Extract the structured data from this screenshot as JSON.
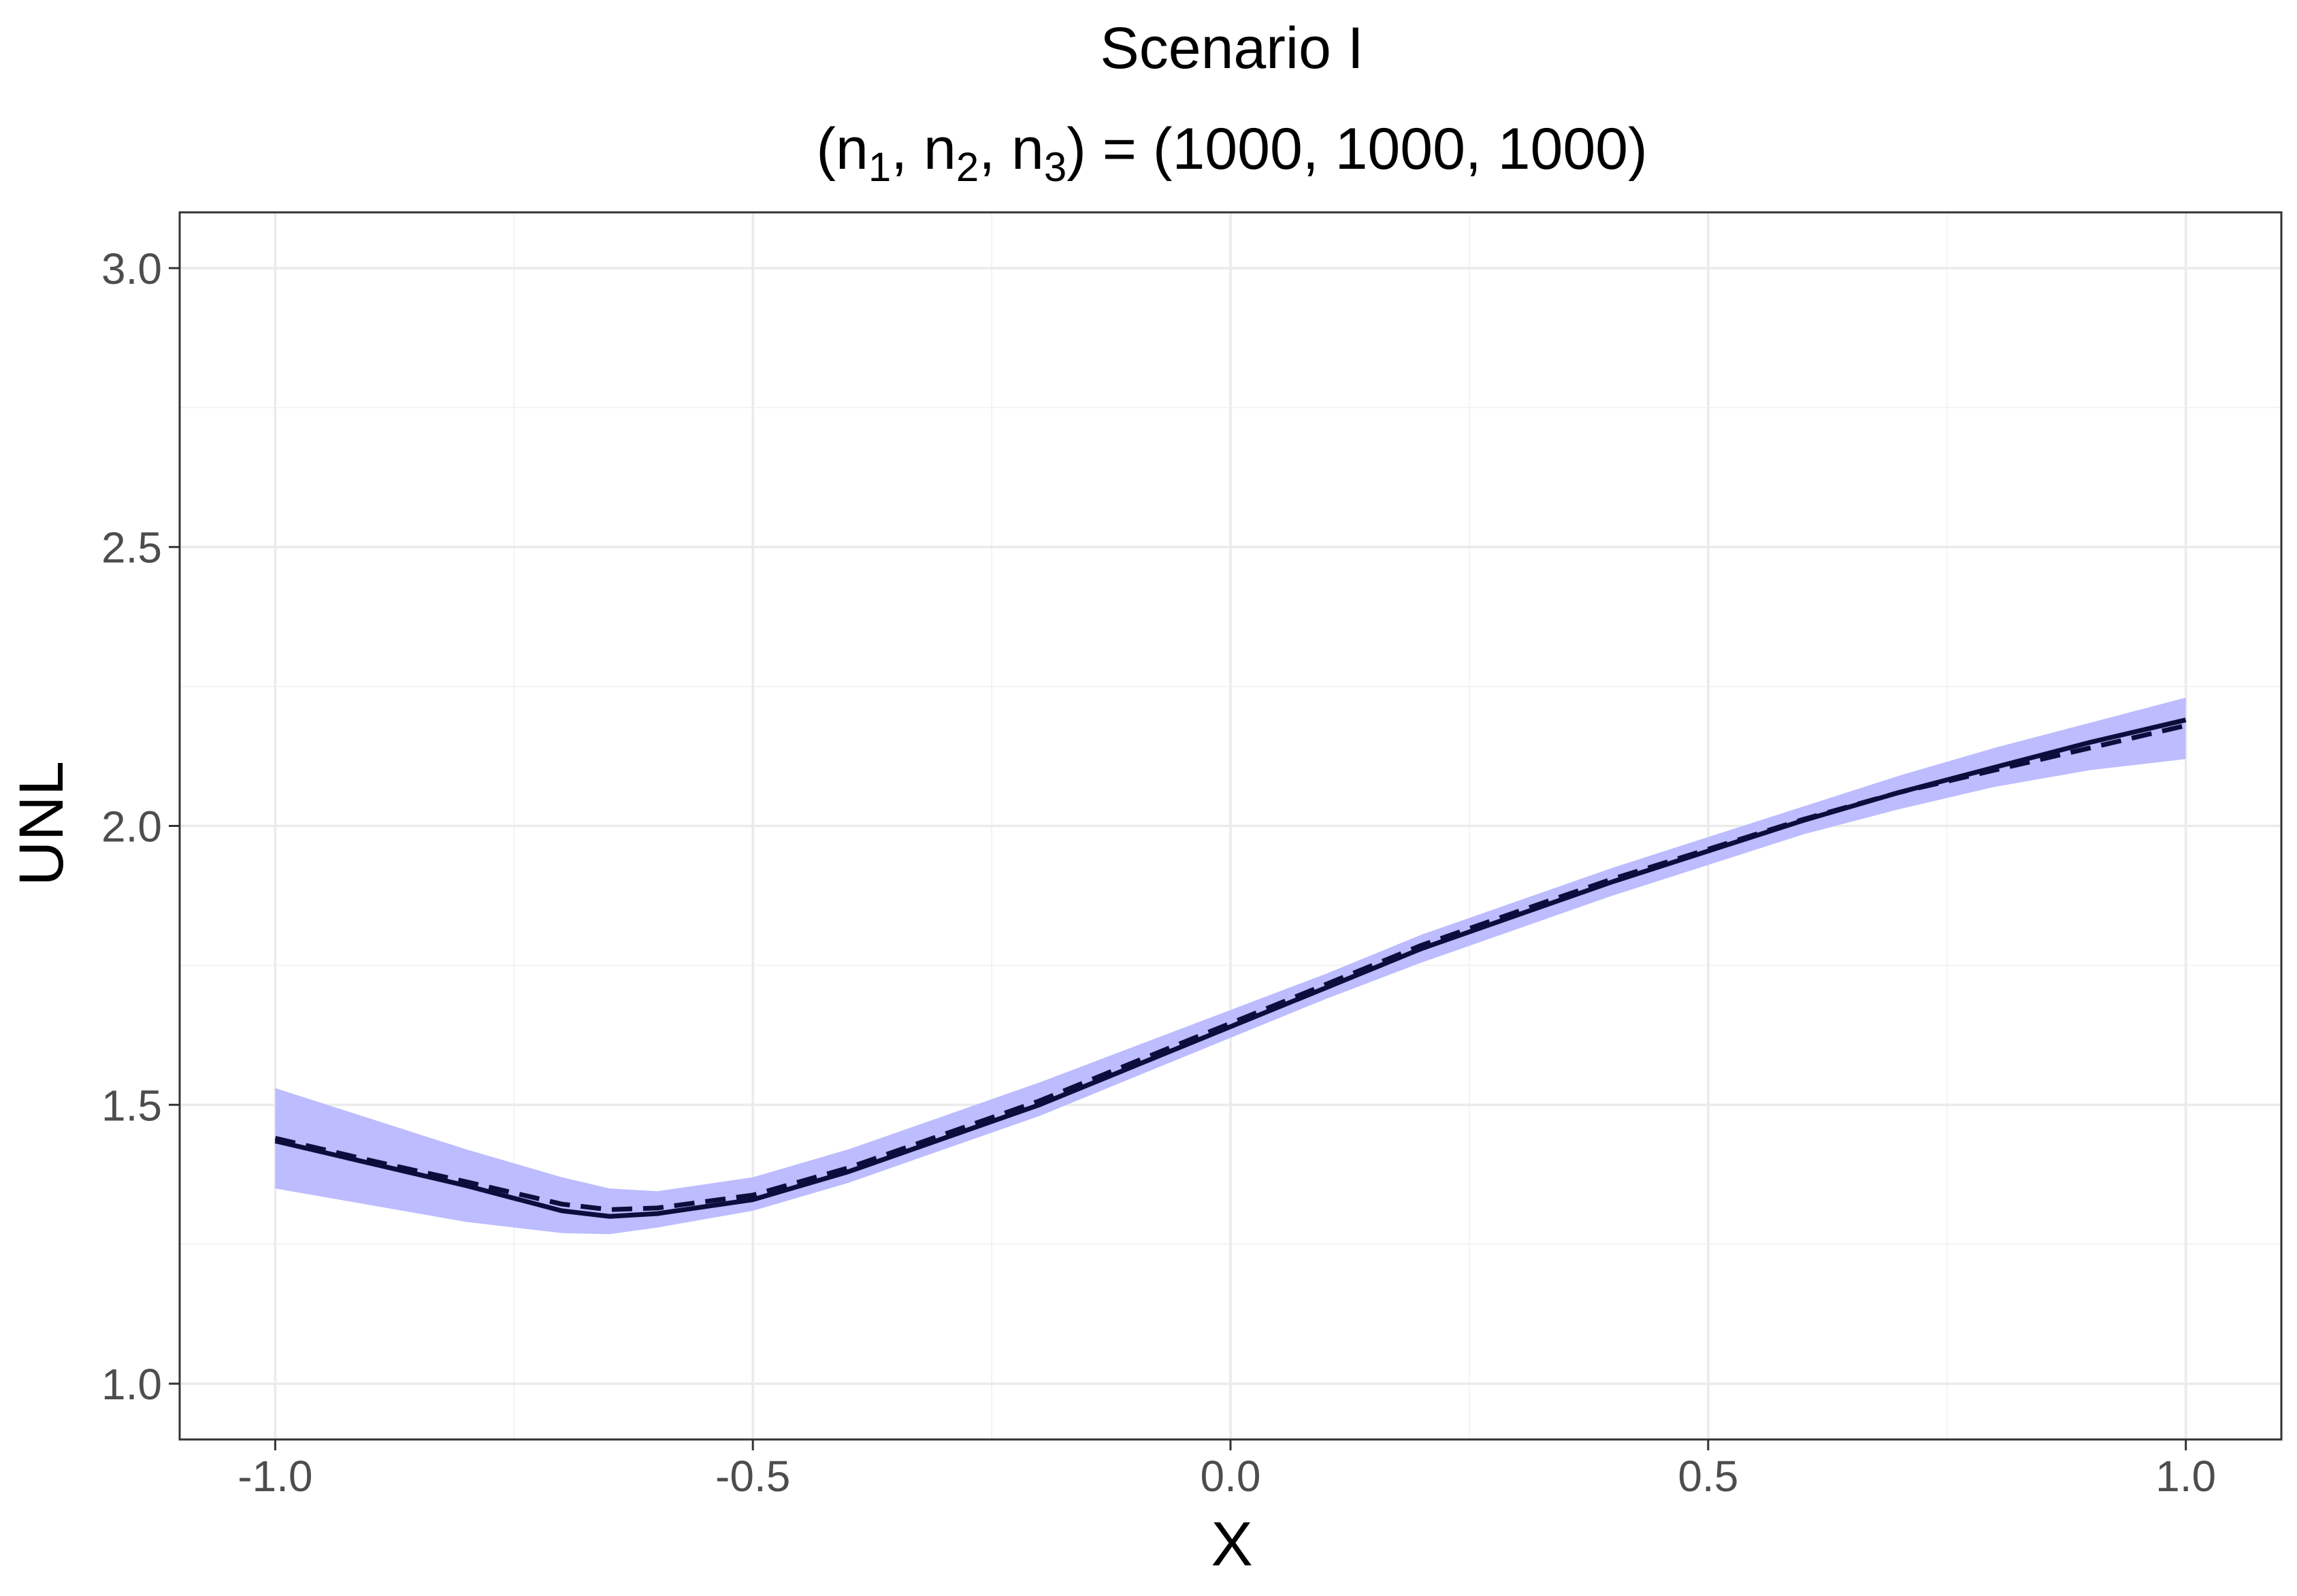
{
  "chart_data": {
    "type": "line",
    "title": "Scenario I",
    "subtitle_parts": {
      "open": "(n",
      "sub1": "1",
      "sep1": ", n",
      "sub2": "2",
      "sep2": ", n",
      "sub3": "3",
      "close": ") = (1000, 1000, 1000)"
    },
    "xlabel": "X",
    "ylabel": "UNL",
    "xlim": [
      -1.1,
      1.1
    ],
    "ylim": [
      0.9,
      3.1
    ],
    "x_ticks": [
      -1.0,
      -0.5,
      0.0,
      0.5,
      1.0
    ],
    "x_tick_labels": [
      "-1.0",
      "-0.5",
      "0.0",
      "0.5",
      "1.0"
    ],
    "y_ticks": [
      1.0,
      1.5,
      2.0,
      2.5,
      3.0
    ],
    "y_tick_labels": [
      "1.0",
      "1.5",
      "2.0",
      "2.5",
      "3.0"
    ],
    "grid": true,
    "colors": {
      "band": "#bcbcff",
      "line": "#0d0d3d"
    },
    "x": [
      -1.0,
      -0.9,
      -0.8,
      -0.7,
      -0.65,
      -0.6,
      -0.5,
      -0.4,
      -0.3,
      -0.2,
      -0.1,
      0.0,
      0.1,
      0.2,
      0.3,
      0.4,
      0.5,
      0.6,
      0.7,
      0.8,
      0.9,
      1.0
    ],
    "series": [
      {
        "style": "solid",
        "values": [
          1.435,
          1.395,
          1.355,
          1.31,
          1.3,
          1.305,
          1.33,
          1.38,
          1.44,
          1.5,
          1.57,
          1.64,
          1.71,
          1.78,
          1.84,
          1.9,
          1.955,
          2.01,
          2.06,
          2.105,
          2.15,
          2.19
        ]
      },
      {
        "style": "dashed",
        "values": [
          1.44,
          1.4,
          1.362,
          1.322,
          1.312,
          1.315,
          1.338,
          1.387,
          1.447,
          1.507,
          1.577,
          1.646,
          1.716,
          1.786,
          1.846,
          1.905,
          1.958,
          2.012,
          2.06,
          2.1,
          2.14,
          2.18
        ]
      }
    ],
    "band": {
      "lower": [
        1.35,
        1.32,
        1.29,
        1.27,
        1.268,
        1.28,
        1.31,
        1.36,
        1.42,
        1.48,
        1.55,
        1.62,
        1.69,
        1.755,
        1.815,
        1.875,
        1.93,
        1.985,
        2.03,
        2.07,
        2.1,
        2.12
      ],
      "upper": [
        1.53,
        1.475,
        1.42,
        1.37,
        1.35,
        1.345,
        1.37,
        1.42,
        1.48,
        1.54,
        1.605,
        1.67,
        1.735,
        1.805,
        1.865,
        1.925,
        1.98,
        2.035,
        2.09,
        2.14,
        2.185,
        2.23
      ]
    }
  }
}
